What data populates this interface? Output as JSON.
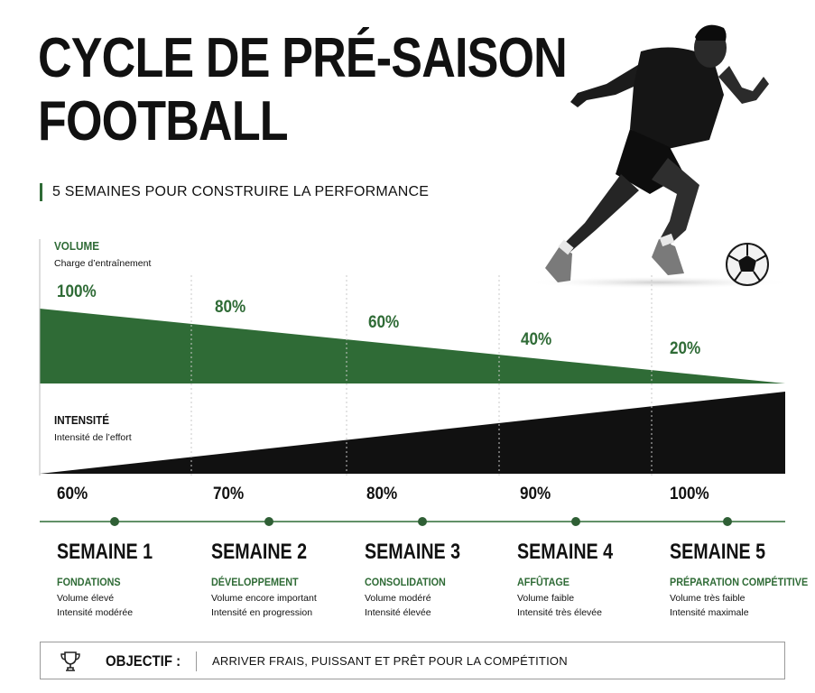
{
  "title_line1": "CYCLE DE PRÉ-SAISON",
  "title_line2": "FOOTBALL",
  "subtitle": "5 SEMAINES POUR CONSTRUIRE LA PERFORMANCE",
  "volume": {
    "label": "VOLUME",
    "sublabel": "Charge d’entraînement"
  },
  "intensity": {
    "label": "INTENSITÉ",
    "sublabel": "Intensité de l’effort"
  },
  "weeks": [
    {
      "title": "SEMAINE 1",
      "phase": "FONDATIONS",
      "line1": "Volume élevé",
      "line2": "Intensité modérée",
      "volume": 100,
      "intensity": 60,
      "volume_label": "100%",
      "intensity_label": "60%"
    },
    {
      "title": "SEMAINE 2",
      "phase": "DÉVELOPPEMENT",
      "line1": "Volume encore important",
      "line2": "Intensité en progression",
      "volume": 80,
      "intensity": 70,
      "volume_label": "80%",
      "intensity_label": "70%"
    },
    {
      "title": "SEMAINE 3",
      "phase": "CONSOLIDATION",
      "line1": "Volume modéré",
      "line2": "Intensité élevée",
      "volume": 60,
      "intensity": 80,
      "volume_label": "60%",
      "intensity_label": "80%"
    },
    {
      "title": "SEMAINE 4",
      "phase": "AFFÛTAGE",
      "line1": "Volume faible",
      "line2": "Intensité très élevée",
      "volume": 40,
      "intensity": 90,
      "volume_label": "40%",
      "intensity_label": "90%"
    },
    {
      "title": "SEMAINE 5",
      "phase": "PRÉPARATION COMPÉTITIVE",
      "line1": "Volume très faible",
      "line2": "Intensité maximale",
      "volume": 20,
      "intensity": 100,
      "volume_label": "20%",
      "intensity_label": "100%"
    }
  ],
  "objective": {
    "label": "OBJECTIF :",
    "text": "ARRIVER FRAIS, PUISSANT ET PRÊT POUR LA COMPÉTITION",
    "icon": "trophy-icon"
  },
  "colors": {
    "accent": "#2f6b36",
    "dark": "#111111"
  },
  "player_image": "football-player-running"
}
